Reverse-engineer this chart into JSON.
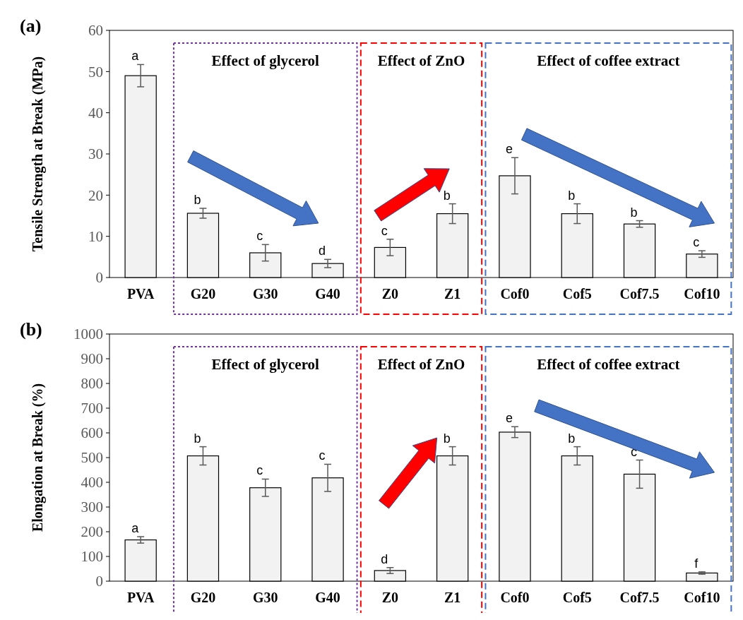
{
  "chart_data": [
    {
      "type": "bar",
      "title": "(a)",
      "ylabel": "Tensile Strength at Break (MPa)",
      "categories": [
        "PVA",
        "G20",
        "G30",
        "G40",
        "Z0",
        "Z1",
        "Cof0",
        "Cof5",
        "Cof7.5",
        "Cof10"
      ],
      "values": [
        49,
        15.6,
        6,
        3.4,
        7.3,
        15.5,
        24.7,
        15.5,
        13,
        5.7
      ],
      "errors": [
        2.7,
        1.2,
        2,
        1,
        2,
        2.4,
        4.4,
        2.4,
        0.8,
        0.8
      ],
      "value_labels": [
        "a",
        "b",
        "c",
        "d",
        "c",
        "b",
        "e",
        "b",
        "b",
        "c"
      ],
      "color": "#f2f2f2",
      "ylim": [
        0,
        60
      ],
      "yticks": [
        0,
        10,
        20,
        30,
        40,
        50,
        60
      ],
      "annotations": [
        "Effect of glycerol",
        "Effect of ZnO",
        "Effect of coffee extract"
      ]
    },
    {
      "type": "bar",
      "title": "(b)",
      "ylabel": "Elongation at Break (%)",
      "categories": [
        "PVA",
        "G20",
        "G30",
        "G40",
        "Z0",
        "Z1",
        "Cof0",
        "Cof5",
        "Cof7.5",
        "Cof10"
      ],
      "values": [
        167,
        507,
        378,
        418,
        43,
        507,
        603,
        507,
        433,
        33
      ],
      "errors": [
        13,
        37,
        35,
        55,
        12,
        37,
        22,
        37,
        57,
        5
      ],
      "value_labels": [
        "a",
        "b",
        "c",
        "c",
        "d",
        "b",
        "e",
        "b",
        "c",
        "f"
      ],
      "color": "#f2f2f2",
      "ylim": [
        0,
        1000
      ],
      "yticks": [
        0,
        100,
        200,
        300,
        400,
        500,
        600,
        700,
        800,
        900,
        1000
      ],
      "annotations": [
        "Effect of glycerol",
        "Effect of ZnO",
        "Effect of coffee extract"
      ]
    }
  ]
}
